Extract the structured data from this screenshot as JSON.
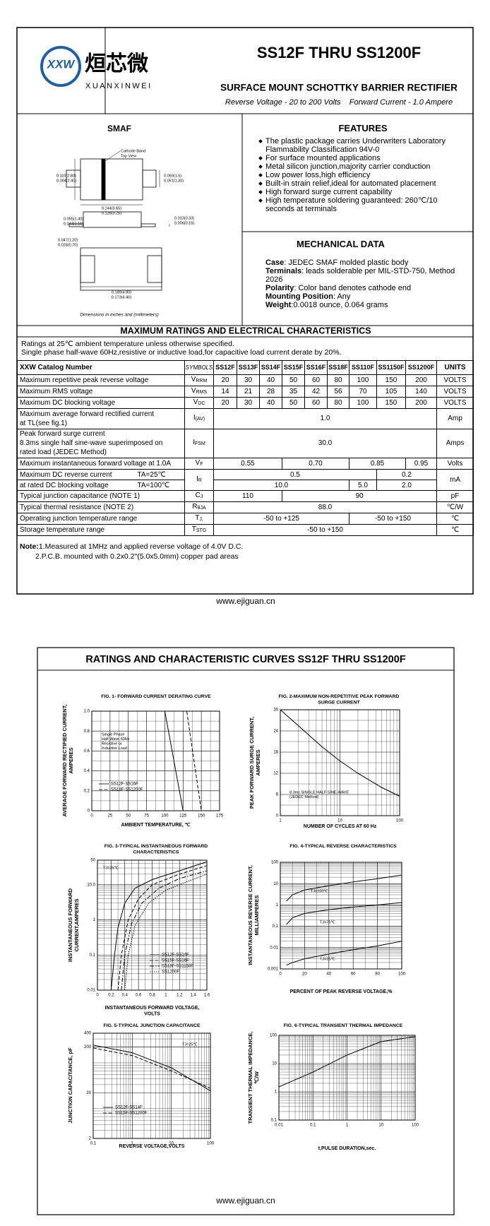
{
  "header": {
    "logo_mark": "XXW",
    "logo_cn": "烜芯微",
    "logo_en": "XUANXINWEI",
    "title": "SS12F THRU SS1200F",
    "subtitle": "SURFACE MOUNT SCHOTTKY BARRIER RECTIFIER",
    "specs": "Reverse Voltage - 20 to 200 Volts    Forward Current - 1.0 Ampere"
  },
  "package": {
    "title": "SMAF",
    "labels": [
      "Cathode Band",
      "Top View"
    ],
    "dims": [
      "0.110(2.80)",
      "0.094(2.40)",
      "0.059(1.5)",
      "0.051(1.30)",
      "0.144(3.65)",
      "0.128(3.25)",
      "0.055(1.40)",
      "0.043(1.10)",
      "0.013(0.33)",
      "0.006(0.15)",
      "0.047(1.20)",
      "0.028(0.70)",
      "0.189(4.80)",
      "0.173(4.40)"
    ],
    "note": "Dimensions in inches and (millimeters)"
  },
  "features": {
    "title": "FEATURES",
    "items": [
      "The plastic package carries Underwriters Laboratory Flammability Classification 94V-0",
      "For surface mounted applications",
      "Metal silicon junction,majority carrier conduction",
      "Low power loss,high efficiency",
      "Built-in strain relief,ideal for automated placement",
      "High forward surge current capability",
      "High temperature soldering guaranteed: 260℃/10 seconds at terminals"
    ]
  },
  "mechanical": {
    "title": "MECHANICAL DATA",
    "items": [
      {
        "label": "Case",
        "text": ": JEDEC SMAF molded plastic body"
      },
      {
        "label": "Terminals",
        "text": ": leads solderable per MIL-STD-750, Method 2026"
      },
      {
        "label": "Polarity",
        "text": ": Color band denotes cathode end"
      },
      {
        "label": "Mounting Position",
        "text": ": Any"
      },
      {
        "label": "Weight",
        "text": ":0.0018 ounce, 0.064 grams"
      }
    ]
  },
  "ratings": {
    "title": "MAXIMUM RATINGS AND ELECTRICAL CHARACTERISTICS",
    "notes": [
      "Ratings at 25℃ ambient temperature unless otherwise specified.",
      "Single phase half-wave 60Hz,resistive or inductive load,for capacitive load current derate by 20%."
    ],
    "table": {
      "header": {
        "param": "XXW Catalog Number",
        "symbol": "SYMBOLS",
        "parts": [
          "SS12F",
          "SS13F",
          "SS14F",
          "SS15F",
          "SS16F",
          "SS18F",
          "SS110F",
          "SS1150F",
          "SS1200F"
        ],
        "unit": "UNITS"
      },
      "rows": [
        {
          "param": [
            "Maximum repetitive peak reverse voltage"
          ],
          "symbol": {
            "main": "V",
            "sub": "RRM"
          },
          "values": [
            [
              "20",
              "30",
              "40",
              "50",
              "60",
              "80",
              "100",
              "150",
              "200"
            ]
          ],
          "unit": "VOLTS"
        },
        {
          "param": [
            "Maximum RMS voltage"
          ],
          "symbol": {
            "main": "V",
            "sub": "RMS"
          },
          "values": [
            [
              "14",
              "21",
              "28",
              "35",
              "42",
              "56",
              "70",
              "105",
              "140"
            ]
          ],
          "unit": "VOLTS"
        },
        {
          "param": [
            "Maximum DC blocking voltage"
          ],
          "symbol": {
            "main": "V",
            "sub": "DC"
          },
          "values": [
            [
              "20",
              "30",
              "40",
              "50",
              "60",
              "80",
              "100",
              "150",
              "200"
            ]
          ],
          "unit": "VOLTS"
        },
        {
          "param": [
            "Maximum average forward rectified current",
            "at TL(see fig.1)"
          ],
          "symbol": {
            "main": "I",
            "sub": "(AV)"
          },
          "values": [
            [
              "1.0"
            ]
          ],
          "unit": "Amp"
        },
        {
          "param": [
            "Peak forward surge current",
            "8.3ms single half sine-wave superimposed on",
            "rated load (JEDEC Method)"
          ],
          "symbol": {
            "main": "I",
            "sub": "FSM"
          },
          "values": [
            [
              "30.0"
            ]
          ],
          "unit": "Amps"
        },
        {
          "param": [
            "Maximum instantaneous forward voltage at 1.0A"
          ],
          "symbol": {
            "main": "V",
            "sub": "F"
          },
          "values": [
            [
              "0.55",
              "0.70",
              "0.85",
              "0.95"
            ]
          ],
          "unit": "Volts"
        },
        {
          "param": [
            "Maximum DC reverse current",
            "at rated DC blocking voltage"
          ],
          "conditions": [
            "TA=25℃",
            "TA=100℃"
          ],
          "symbol": {
            "main": "I",
            "sub": "R"
          },
          "values": [
            [
              "0.5",
              "0.2"
            ],
            [
              "10.0",
              "5.0",
              "2.0"
            ]
          ],
          "unit": "mA"
        },
        {
          "param": [
            "Typical junction capacitance (NOTE 1)"
          ],
          "symbol": {
            "main": "C",
            "sub": "J"
          },
          "values": [
            [
              "110",
              "90"
            ]
          ],
          "unit": "pF"
        },
        {
          "param": [
            "Typical thermal resistance (NOTE 2)"
          ],
          "symbol": {
            "main": "R",
            "sub": "θJA"
          },
          "values": [
            [
              "88.0"
            ]
          ],
          "unit": "℃/W"
        },
        {
          "param": [
            "Operating junction temperature range"
          ],
          "symbol": {
            "main": "T",
            "sub": "J,"
          },
          "values": [
            [
              "-50 to +125",
              "-50 to +150"
            ]
          ],
          "unit": "℃"
        },
        {
          "param": [
            "Storage temperature range"
          ],
          "symbol": {
            "main": "T",
            "sub": "STG"
          },
          "values": [
            [
              "-50 to +150"
            ]
          ],
          "unit": "℃"
        }
      ]
    }
  },
  "footnotes": {
    "label": "Note:",
    "items": [
      "1.Measured at 1MHz and applied reverse voltage of 4.0V D.C.",
      "2.P.C.B. mounted with 0.2x0.2\"(5.0x5.0mm) copper pad areas"
    ]
  },
  "footer_url": "www.ejiguan.cn",
  "curves": {
    "title": "RATINGS AND CHARACTERISTIC CURVES SS12F THRU SS1200F",
    "footer_url": "www.ejiguan.cn",
    "figures": [
      {
        "type": "line",
        "title": [
          "FIG. 1- FORWARD CURRENT DERATING CURVE"
        ],
        "ylabel": [
          "AVERAGE FORWARD RECTIFIED CURRENT,",
          "AMPERES"
        ],
        "xlabel": [
          "AMBIENT TEMPERATURE, ℃"
        ],
        "xlim": [
          0,
          175
        ],
        "ylim": [
          0,
          1
        ],
        "xticks": [
          0,
          25,
          50,
          75,
          100,
          125,
          150,
          175
        ],
        "yticks": [
          0,
          0.2,
          0.4,
          0.6,
          0.8,
          {
            "value": 1,
            "label": "1.0"
          }
        ],
        "grid": true,
        "log_x": false,
        "log_y": false,
        "series": [
          {
            "name": "SS12F-SS16F",
            "style": "solid",
            "x": [
              0,
              100,
              125
            ],
            "values": [
              1,
              1,
              0
            ]
          },
          {
            "name": "SS18F-SS1200F",
            "style": "dashed",
            "x": [
              0,
              130,
              150
            ],
            "values": [
              1,
              1,
              0
            ]
          }
        ],
        "annotations": [
          [
            "Single Phase",
            "Half Wave 60Hz",
            "Resistive or",
            "Inductive Load"
          ]
        ]
      },
      {
        "type": "line",
        "title": [
          "FIG. 2-MAXIMUM NON-REPETITIVE PEAK FORWARD",
          "SURGE CURRENT"
        ],
        "ylabel": [
          "PEAK FORWARD SURGE CURRENT,",
          "AMPERES"
        ],
        "xlabel": [
          "NUMBER OF CYCLES AT 60 Hz"
        ],
        "xlim": [
          1,
          100
        ],
        "ylim": [
          0,
          30
        ],
        "xticks": [
          1,
          10,
          100
        ],
        "yticks": [
          0,
          6,
          12,
          18,
          24,
          30
        ],
        "grid": true,
        "log_x": true,
        "log_y": false,
        "series": [
          {
            "style": "solid",
            "x": [
              1,
              2,
              5,
              10,
              20,
              50,
              100
            ],
            "values": [
              30,
              25.5,
              19.5,
              15.5,
              12,
              8,
              5.5
            ]
          }
        ],
        "annotations": [
          [
            "8.3ms SINGLE HALF SINE-WAVE",
            "(JEDEC Method)"
          ]
        ]
      },
      {
        "type": "line",
        "title": [
          "FIG. 3-TYPICAL INSTANTANEOUS FORWARD",
          "CHARACTERISTICS"
        ],
        "ylabel": [
          "INSTANTANEOUS FORWARD",
          "CURRENT,AMPERES"
        ],
        "xlabel": [
          "INSTANTANEOUS FORWARD VOLTAGE,",
          "VOLTS"
        ],
        "xlim": [
          0,
          1.6
        ],
        "ylim": [
          0.01,
          50
        ],
        "xticks": [
          0,
          0.2,
          0.4,
          0.6,
          0.8,
          1,
          1.2,
          1.4,
          1.6
        ],
        "yticks": [
          0.01,
          0.1,
          1,
          {
            "value": 10,
            "label": "10.0"
          },
          50
        ],
        "grid": true,
        "log_x": false,
        "log_y": true,
        "series": [
          {
            "name": "SS12F-SS14F",
            "style": "solid",
            "x": [
              0.2,
              0.25,
              0.3,
              0.4,
              0.55,
              0.8,
              1.2,
              1.6
            ],
            "values": [
              0.01,
              0.1,
              0.6,
              3,
              8,
              14,
              25,
              45
            ]
          },
          {
            "name": "SS15F-SS16F",
            "style": "dashed",
            "x": [
              0.3,
              0.35,
              0.45,
              0.6,
              0.8,
              1.2,
              1.6
            ],
            "values": [
              0.01,
              0.1,
              1,
              4,
              10,
              20,
              35
            ]
          },
          {
            "name": "SS18F-SS1150F",
            "style": "dashdot",
            "x": [
              0.35,
              0.4,
              0.5,
              0.65,
              0.9,
              1.2,
              1.6
            ],
            "values": [
              0.01,
              0.1,
              0.8,
              3,
              8,
              15,
              25
            ]
          },
          {
            "name": "SS1200F",
            "style": "dotted",
            "x": [
              0.4,
              0.45,
              0.55,
              0.75,
              1,
              1.3,
              1.6
            ],
            "values": [
              0.01,
              0.1,
              0.7,
              3,
              7,
              12,
              20
            ]
          }
        ],
        "annotations": [
          [
            "TJ=25℃"
          ]
        ]
      },
      {
        "type": "line",
        "title": [
          "FIG. 4-TYPICAL REVERSE CHARACTERISTICS"
        ],
        "ylabel": [
          "INSTANTANEOUS REVERSE CURRENT,",
          "MILLIAMPERES"
        ],
        "xlabel": [
          "PERCENT OF PEAK REVERSE VOLTAGE,%"
        ],
        "xlim": [
          0,
          100
        ],
        "ylim": [
          0.001,
          100
        ],
        "xticks": [
          0,
          20,
          40,
          60,
          80,
          100
        ],
        "yticks": [
          0.001,
          0.01,
          0.1,
          1,
          10,
          100
        ],
        "grid": true,
        "log_x": false,
        "log_y": true,
        "series": [
          {
            "style": "solid",
            "x": [
              5,
              10,
              20,
              40,
              60,
              80,
              100
            ],
            "values": [
              1.5,
              3,
              5,
              8,
              12,
              17,
              25
            ]
          },
          {
            "style": "solid",
            "x": [
              5,
              10,
              20,
              40,
              60,
              80,
              100
            ],
            "values": [
              0.12,
              0.25,
              0.4,
              0.6,
              0.8,
              1,
              1.3
            ]
          },
          {
            "style": "solid",
            "x": [
              5,
              10,
              20,
              40,
              60,
              80,
              100
            ],
            "values": [
              0.0015,
              0.002,
              0.003,
              0.005,
              0.008,
              0.012,
              0.02
            ]
          }
        ],
        "annotations": [
          [
            "TJ=100℃"
          ],
          [
            "TJ=75℃"
          ],
          [
            "TJ=25℃"
          ]
        ]
      },
      {
        "type": "line",
        "title": [
          "FIG. 5-TYPICAL JUNCTION CAPACITANCE"
        ],
        "ylabel": [
          "JUNCTION CAPACITANCE, pF"
        ],
        "xlabel": [
          "REVERSE VOLTAGE,VOLTS"
        ],
        "xlim": [
          0.1,
          100
        ],
        "ylim": [
          2,
          400
        ],
        "xticks": [
          0.1,
          1,
          10,
          100
        ],
        "yticks": [
          2,
          20,
          200,
          400
        ],
        "grid": true,
        "log_x": true,
        "log_y": true,
        "series": [
          {
            "name": "SS12F-SS14F",
            "style": "solid",
            "x": [
              0.1,
              1,
              10,
              100
            ],
            "values": [
              220,
              150,
              70,
              22
            ]
          },
          {
            "name": "SS15F-SS1200F",
            "style": "dashed",
            "x": [
              0.1,
              1,
              10,
              100
            ],
            "values": [
              190,
              130,
              60,
              25
            ]
          }
        ],
        "annotations": [
          [
            "TJ=25℃"
          ]
        ]
      },
      {
        "type": "line",
        "title": [
          "FIG. 6-TYPICAL TRANSIENT THERMAL IMPEDANCE"
        ],
        "ylabel": [
          "TRANSIENT THERMAL IMPEDANCE,",
          "℃/W"
        ],
        "xlabel": [
          "t,PULSE DURATION,sec."
        ],
        "xlim": [
          0.01,
          100
        ],
        "ylim": [
          0.1,
          100
        ],
        "xticks": [
          0.01,
          0.1,
          1,
          10,
          100
        ],
        "yticks": [
          0.1,
          1,
          10,
          100
        ],
        "grid": true,
        "log_x": true,
        "log_y": true,
        "series": [
          {
            "style": "solid",
            "x": [
              0.01,
              0.1,
              1,
              10,
              100
            ],
            "values": [
              1.5,
              5,
              20,
              60,
              90
            ]
          }
        ]
      }
    ]
  }
}
